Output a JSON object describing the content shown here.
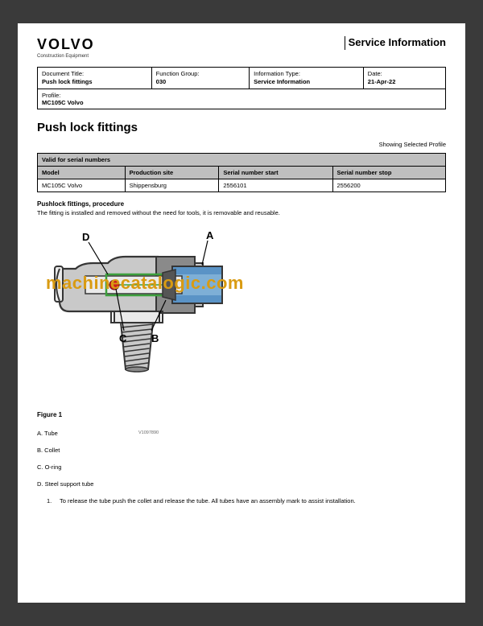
{
  "header": {
    "logo": "VOLVO",
    "logo_sub": "Construction Equipment",
    "service_info": "Service Information"
  },
  "info_table": {
    "cells": [
      {
        "label": "Document Title:",
        "value": "Push lock fittings",
        "width": "28%"
      },
      {
        "label": "Function Group:",
        "value": "030",
        "width": "24%"
      },
      {
        "label": "Information Type:",
        "value": "Service Information",
        "width": "28%"
      },
      {
        "label": "Date:",
        "value": "21-Apr-22",
        "width": "20%"
      }
    ],
    "profile_label": "Profile:",
    "profile_value": "MC105C Volvo"
  },
  "section_title": "Push lock fittings",
  "showing_text": "Showing Selected Profile",
  "serial_table": {
    "header": "Valid for serial numbers",
    "columns": [
      "Model",
      "Production site",
      "Serial number start",
      "Serial number stop"
    ],
    "rows": [
      [
        "MC105C Volvo",
        "Shippensburg",
        "2556101",
        "2556200"
      ]
    ]
  },
  "procedure": {
    "heading": "Pushlock fittings, procedure",
    "text": "The fitting is installed and removed without the need for tools, it is removable and reusable."
  },
  "figure": {
    "ref": "V1097890",
    "caption": "Figure 1",
    "labels": {
      "A": "A",
      "B": "B",
      "C": "C",
      "D": "D"
    },
    "colors": {
      "body_outline": "#353535",
      "body_fill": "#c9c9c9",
      "body_light": "#eaeaea",
      "body_dark": "#8a8a8a",
      "tube_fill": "#5a93c6",
      "oring": "#cc1f1f",
      "support": "#3da03d",
      "leader": "#000000",
      "text": "#000000"
    }
  },
  "watermark": "machinecatalogic.com",
  "legend": [
    "A. Tube",
    "B. Collet",
    "C. O-ring",
    "D. Steel support tube"
  ],
  "steps": [
    {
      "n": "1.",
      "text": "To release the tube push the collet and release the tube. All tubes have an assembly mark to assist installation."
    }
  ]
}
